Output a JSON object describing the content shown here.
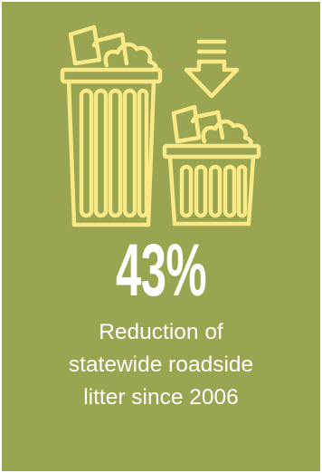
{
  "stat": {
    "value": "43%",
    "caption_lines": [
      "Reduction of",
      "statewide roadside",
      "litter since 2006"
    ]
  },
  "colors": {
    "background": "#99a550",
    "icon_stroke": "#f9ea87",
    "text": "#ffffff"
  },
  "icons": {
    "large_bin": "trash-can-full-icon",
    "arrow": "arrow-down-icon",
    "small_bin": "trash-can-full-icon"
  }
}
